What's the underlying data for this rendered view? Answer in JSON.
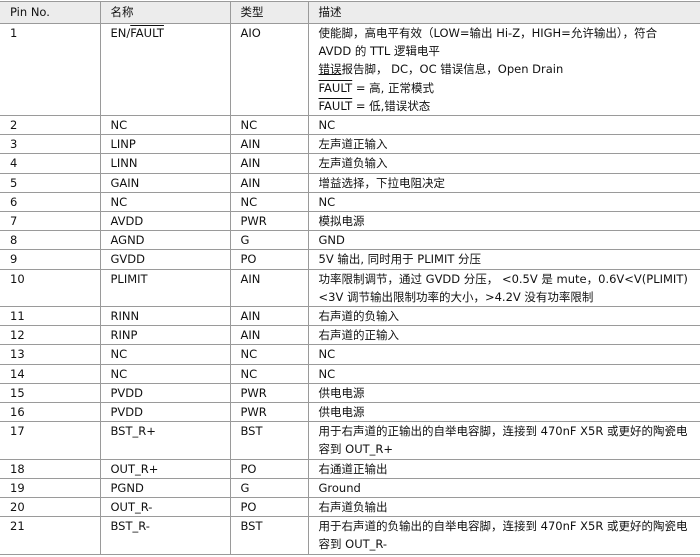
{
  "headers": [
    "Pin No.",
    "名称",
    "类型",
    "描述"
  ],
  "row1": {
    "pin": "1",
    "name_prefix": "EN/",
    "name_overline": "FAULT",
    "type": "AIO",
    "desc_line1": "使能脚，高电平有效（LOW=输出 Hi-Z，HIGH=允许输出），符合 AVDD 的 TTL 逻辑电平",
    "desc_line2_underlined": "错误",
    "desc_line2_rest": "报告脚， DC，OC 错误信息，Open Drain",
    "fault_label": "FAULT",
    "fault_high": " = 高, 正常模式",
    "fault_low": " = 低,错误状态"
  },
  "rows": [
    {
      "pin": "2",
      "name": "NC",
      "type": "NC",
      "desc": "NC"
    },
    {
      "pin": "3",
      "name": "LINP",
      "type": "AIN",
      "desc": "左声道正输入"
    },
    {
      "pin": "4",
      "name": "LINN",
      "type": "AIN",
      "desc": "左声道负输入"
    },
    {
      "pin": "5",
      "name": "GAIN",
      "type": "AIN",
      "desc": "增益选择，下拉电阻决定"
    },
    {
      "pin": "6",
      "name": "NC",
      "type": "NC",
      "desc": "NC"
    },
    {
      "pin": "7",
      "name": "AVDD",
      "type": "PWR",
      "desc": "模拟电源"
    },
    {
      "pin": "8",
      "name": "AGND",
      "type": "G",
      "desc": "GND"
    },
    {
      "pin": "9",
      "name": "GVDD",
      "type": "PO",
      "desc": "5V 输出, 同时用于 PLIMIT 分压"
    },
    {
      "pin": "10",
      "name": "PLIMIT",
      "type": "AIN",
      "desc": "功率限制调节，通过 GVDD 分压， <0.5V 是 mute，0.6V<V(PLIMIT)<3V 调节输出限制功率的大小，>4.2V 没有功率限制"
    },
    {
      "pin": "11",
      "name": "RINN",
      "type": "AIN",
      "desc": "右声道的负输入"
    },
    {
      "pin": "12",
      "name": "RINP",
      "type": "AIN",
      "desc": "右声道的正输入"
    },
    {
      "pin": "13",
      "name": "NC",
      "type": "NC",
      "desc": "NC"
    },
    {
      "pin": "14",
      "name": "NC",
      "type": "NC",
      "desc": "NC"
    },
    {
      "pin": "15",
      "name": "PVDD",
      "type": "PWR",
      "desc": "供电电源"
    },
    {
      "pin": "16",
      "name": "PVDD",
      "type": "PWR",
      "desc": "供电电源"
    },
    {
      "pin": "17",
      "name": "BST_R+",
      "type": "BST",
      "desc": "用于右声道的正输出的自举电容脚，连接到 470nF X5R 或更好的陶瓷电容到 OUT_R+"
    },
    {
      "pin": "18",
      "name": "OUT_R+",
      "type": "PO",
      "desc": "右通道正输出"
    },
    {
      "pin": "19",
      "name": "PGND",
      "type": "G",
      "desc": "Ground"
    },
    {
      "pin": "20",
      "name": "OUT_R-",
      "type": "PO",
      "desc": "右声道负输出"
    },
    {
      "pin": "21",
      "name": "BST_R-",
      "type": "BST",
      "desc": "用于右声道的负输出的自举电容脚，连接到 470nF X5R 或更好的陶瓷电容到 OUT_R-"
    }
  ]
}
